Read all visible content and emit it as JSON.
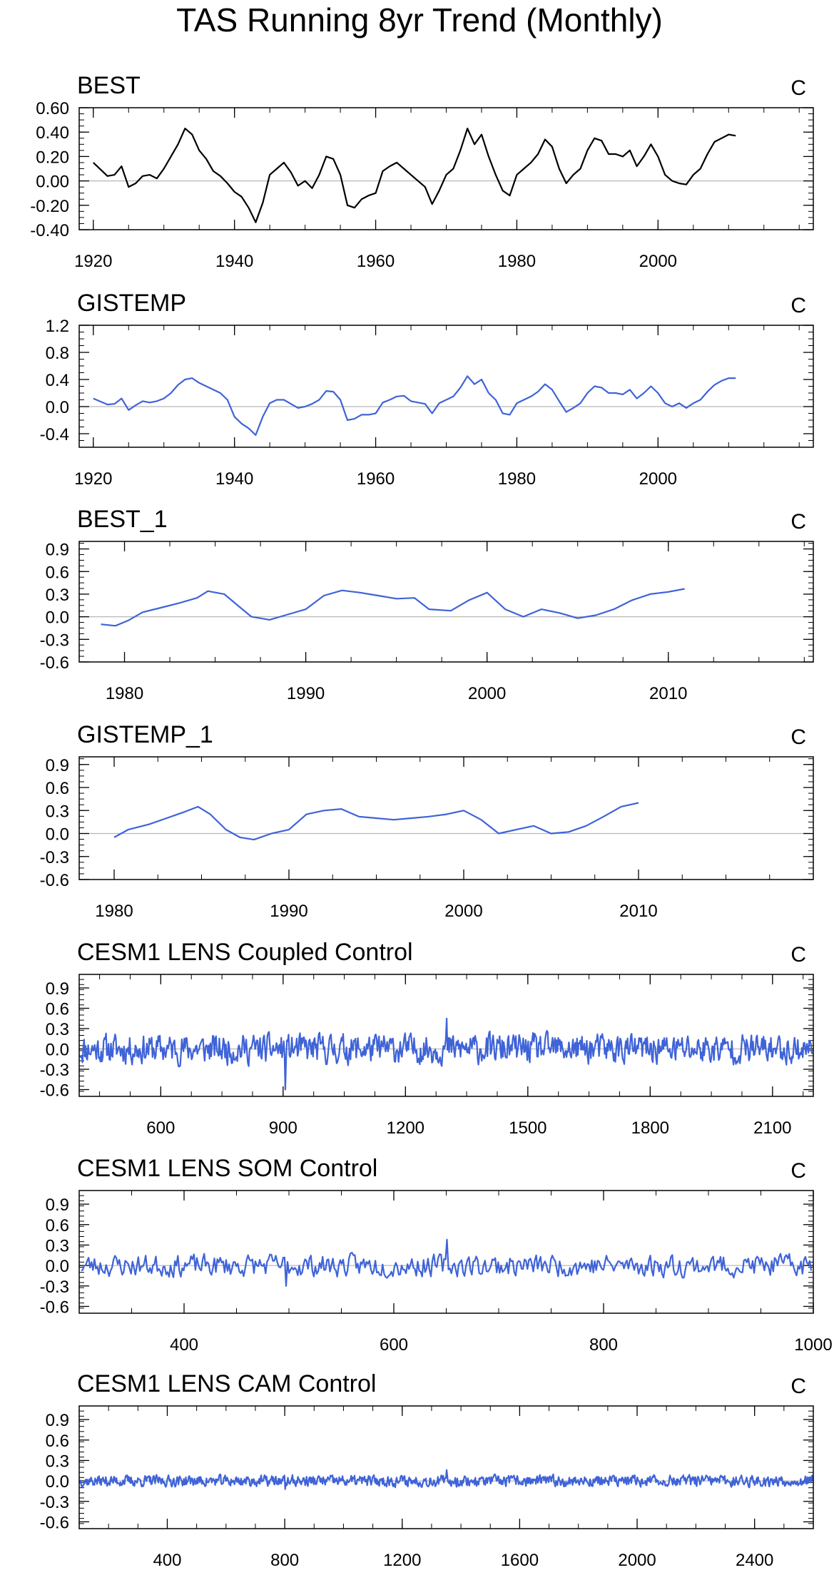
{
  "page_title": "TAS Running 8yr Trend (Monthly)",
  "colors": {
    "line_black": "#000000",
    "line_blue": "#3f63d8",
    "zero_line": "#b8b8b8",
    "axis": "#000000"
  },
  "chart_data": [
    {
      "type": "line",
      "title": "BEST",
      "units": "C",
      "line_color": "#000000",
      "xlim": [
        1918,
        2022
      ],
      "ylim": [
        -0.4,
        0.6
      ],
      "xticks": [
        1920,
        1940,
        1960,
        1980,
        2000
      ],
      "xtick_labels": [
        "1920",
        "1940",
        "1960",
        "1980",
        "2000"
      ],
      "yticks": [
        -0.4,
        -0.2,
        0.0,
        0.2,
        0.4,
        0.6
      ],
      "ytick_labels": [
        "-0.40",
        "-0.20",
        "0.00",
        "0.20",
        "0.40",
        "0.60"
      ],
      "series": [
        {
          "name": "BEST",
          "x": [
            1920,
            1922,
            1923,
            1924,
            1925,
            1926,
            1927,
            1928,
            1929,
            1930,
            1931,
            1932,
            1933,
            1934,
            1935,
            1936,
            1937,
            1938,
            1939,
            1940,
            1941,
            1942,
            1943,
            1944,
            1945,
            1946,
            1947,
            1948,
            1949,
            1950,
            1951,
            1952,
            1953,
            1954,
            1955,
            1956,
            1957,
            1958,
            1959,
            1960,
            1961,
            1962,
            1963,
            1964,
            1965,
            1966,
            1967,
            1968,
            1969,
            1970,
            1971,
            1972,
            1973,
            1974,
            1975,
            1976,
            1977,
            1978,
            1979,
            1980,
            1981,
            1982,
            1983,
            1984,
            1985,
            1986,
            1987,
            1988,
            1989,
            1990,
            1991,
            1992,
            1993,
            1994,
            1995,
            1996,
            1997,
            1998,
            1999,
            2000,
            2001,
            2002,
            2003,
            2004,
            2005,
            2006,
            2007,
            2008,
            2009,
            2010,
            2011
          ],
          "values": [
            0.15,
            0.04,
            0.05,
            0.12,
            -0.05,
            -0.02,
            0.04,
            0.05,
            0.02,
            0.1,
            0.2,
            0.3,
            0.43,
            0.38,
            0.25,
            0.18,
            0.08,
            0.04,
            -0.02,
            -0.09,
            -0.13,
            -0.22,
            -0.34,
            -0.18,
            0.05,
            0.1,
            0.15,
            0.07,
            -0.04,
            0.0,
            -0.06,
            0.05,
            0.2,
            0.18,
            0.05,
            -0.2,
            -0.22,
            -0.15,
            -0.12,
            -0.1,
            0.08,
            0.12,
            0.15,
            0.1,
            0.05,
            0.0,
            -0.05,
            -0.19,
            -0.08,
            0.05,
            0.1,
            0.25,
            0.43,
            0.3,
            0.38,
            0.2,
            0.05,
            -0.08,
            -0.12,
            0.05,
            0.1,
            0.15,
            0.22,
            0.34,
            0.28,
            0.1,
            -0.02,
            0.05,
            0.1,
            0.25,
            0.35,
            0.33,
            0.22,
            0.22,
            0.2,
            0.25,
            0.12,
            0.2,
            0.3,
            0.2,
            0.05,
            0.0,
            -0.02,
            -0.03,
            0.05,
            0.1,
            0.22,
            0.32,
            0.35,
            0.38,
            0.37
          ]
        }
      ]
    },
    {
      "type": "line",
      "title": "GISTEMP",
      "units": "C",
      "line_color": "#3f63d8",
      "xlim": [
        1918,
        2022
      ],
      "ylim": [
        -0.6,
        1.2
      ],
      "xticks": [
        1920,
        1940,
        1960,
        1980,
        2000
      ],
      "xtick_labels": [
        "1920",
        "1940",
        "1960",
        "1980",
        "2000"
      ],
      "yticks": [
        -0.4,
        0.0,
        0.4,
        0.8,
        1.2
      ],
      "ytick_labels": [
        "-0.4",
        "0.0",
        "0.4",
        "0.8",
        "1.2"
      ],
      "series": [
        {
          "name": "GISTEMP",
          "x": [
            1920,
            1922,
            1923,
            1924,
            1925,
            1926,
            1927,
            1928,
            1929,
            1930,
            1931,
            1932,
            1933,
            1934,
            1935,
            1936,
            1937,
            1938,
            1939,
            1940,
            1941,
            1942,
            1943,
            1944,
            1945,
            1946,
            1947,
            1948,
            1949,
            1950,
            1951,
            1952,
            1953,
            1954,
            1955,
            1956,
            1957,
            1958,
            1959,
            1960,
            1961,
            1962,
            1963,
            1964,
            1965,
            1966,
            1967,
            1968,
            1969,
            1970,
            1971,
            1972,
            1973,
            1974,
            1975,
            1976,
            1977,
            1978,
            1979,
            1980,
            1981,
            1982,
            1983,
            1984,
            1985,
            1986,
            1987,
            1988,
            1989,
            1990,
            1991,
            1992,
            1993,
            1994,
            1995,
            1996,
            1997,
            1998,
            1999,
            2000,
            2001,
            2002,
            2003,
            2004,
            2005,
            2006,
            2007,
            2008,
            2009,
            2010,
            2011
          ],
          "values": [
            0.12,
            0.03,
            0.04,
            0.12,
            -0.05,
            0.02,
            0.08,
            0.06,
            0.08,
            0.12,
            0.2,
            0.32,
            0.4,
            0.42,
            0.35,
            0.3,
            0.25,
            0.2,
            0.1,
            -0.15,
            -0.25,
            -0.32,
            -0.42,
            -0.15,
            0.05,
            0.1,
            0.1,
            0.04,
            -0.02,
            0.0,
            0.04,
            0.1,
            0.23,
            0.22,
            0.1,
            -0.2,
            -0.18,
            -0.12,
            -0.12,
            -0.1,
            0.06,
            0.1,
            0.15,
            0.16,
            0.08,
            0.06,
            0.04,
            -0.1,
            0.05,
            0.1,
            0.15,
            0.28,
            0.45,
            0.33,
            0.4,
            0.2,
            0.1,
            -0.1,
            -0.12,
            0.05,
            0.1,
            0.15,
            0.22,
            0.33,
            0.25,
            0.08,
            -0.08,
            -0.02,
            0.05,
            0.2,
            0.3,
            0.28,
            0.2,
            0.2,
            0.18,
            0.25,
            0.12,
            0.2,
            0.3,
            0.2,
            0.05,
            0.0,
            0.05,
            -0.02,
            0.05,
            0.1,
            0.22,
            0.32,
            0.38,
            0.42,
            0.42
          ]
        }
      ]
    },
    {
      "type": "line",
      "title": "BEST_1",
      "units": "C",
      "line_color": "#3f63d8",
      "xlim": [
        1977.5,
        2018
      ],
      "ylim": [
        -0.6,
        1.0
      ],
      "xticks": [
        1980,
        1990,
        2000,
        2010
      ],
      "xtick_labels": [
        "1980",
        "1990",
        "2000",
        "2010"
      ],
      "yticks": [
        -0.6,
        -0.3,
        0.0,
        0.3,
        0.6,
        0.9
      ],
      "ytick_labels": [
        "-0.6",
        "-0.3",
        "0.0",
        "0.3",
        "0.6",
        "0.9"
      ],
      "series": [
        {
          "name": "BEST_1",
          "x": [
            1978.7,
            1979.5,
            1980.2,
            1981,
            1982,
            1983,
            1984,
            1984.6,
            1985.5,
            1986.5,
            1987,
            1988,
            1989,
            1990,
            1991,
            1992,
            1993,
            1994,
            1995,
            1996,
            1996.8,
            1998,
            1999,
            2000,
            2001,
            2002,
            2003,
            2004,
            2005,
            2006,
            2007,
            2008,
            2009,
            2010,
            2010.9
          ],
          "values": [
            -0.1,
            -0.12,
            -0.05,
            0.06,
            0.12,
            0.18,
            0.25,
            0.34,
            0.3,
            0.1,
            0.0,
            -0.04,
            0.03,
            0.1,
            0.28,
            0.35,
            0.32,
            0.28,
            0.24,
            0.25,
            0.1,
            0.08,
            0.22,
            0.32,
            0.1,
            0.0,
            0.1,
            0.05,
            -0.02,
            0.02,
            0.1,
            0.22,
            0.3,
            0.33,
            0.37
          ]
        }
      ]
    },
    {
      "type": "line",
      "title": "GISTEMP_1",
      "units": "C",
      "line_color": "#3f63d8",
      "xlim": [
        1978,
        2020
      ],
      "ylim": [
        -0.6,
        1.0
      ],
      "xticks": [
        1980,
        1990,
        2000,
        2010
      ],
      "xtick_labels": [
        "1980",
        "1990",
        "2000",
        "2010"
      ],
      "yticks": [
        -0.6,
        -0.3,
        0.0,
        0.3,
        0.6,
        0.9
      ],
      "ytick_labels": [
        "-0.6",
        "-0.3",
        "0.0",
        "0.3",
        "0.6",
        "0.9"
      ],
      "series": [
        {
          "name": "GISTEMP_1",
          "x": [
            1980,
            1980.8,
            1982,
            1983,
            1984,
            1984.8,
            1985.5,
            1986.4,
            1987.2,
            1988,
            1989,
            1990,
            1991,
            1992,
            1993,
            1994,
            1995,
            1996,
            1997,
            1998,
            1999,
            2000,
            2001,
            2002,
            2003,
            2004,
            2005,
            2006,
            2007,
            2008,
            2009,
            2010
          ],
          "values": [
            -0.05,
            0.05,
            0.12,
            0.2,
            0.28,
            0.35,
            0.25,
            0.05,
            -0.05,
            -0.08,
            0.0,
            0.05,
            0.25,
            0.3,
            0.32,
            0.22,
            0.2,
            0.18,
            0.2,
            0.22,
            0.25,
            0.3,
            0.18,
            0.0,
            0.05,
            0.1,
            0.0,
            0.02,
            0.1,
            0.22,
            0.35,
            0.4
          ]
        }
      ]
    },
    {
      "type": "line",
      "title": "CESM1 LENS Coupled Control",
      "units": "C",
      "line_color": "#3f63d8",
      "xlim": [
        400,
        2200
      ],
      "ylim": [
        -0.7,
        1.1
      ],
      "xticks": [
        600,
        900,
        1200,
        1500,
        1800,
        2100
      ],
      "xtick_labels": [
        "600",
        "900",
        "1200",
        "1500",
        "1800",
        "2100"
      ],
      "yticks": [
        -0.6,
        -0.3,
        0.0,
        0.3,
        0.6,
        0.9
      ],
      "ytick_labels": [
        "-0.6",
        "-0.3",
        "0.0",
        "0.3",
        "0.6",
        "0.9"
      ],
      "noise": {
        "x_start": 402,
        "x_end": 2198,
        "samples": 900,
        "amplitude": 0.12,
        "min": -0.6,
        "max": 0.45,
        "seed": 11
      }
    },
    {
      "type": "line",
      "title": "CESM1 LENS SOM Control",
      "units": "C",
      "line_color": "#3f63d8",
      "xlim": [
        300,
        1000
      ],
      "ylim": [
        -0.7,
        1.1
      ],
      "xticks": [
        400,
        600,
        800,
        1000
      ],
      "xtick_labels": [
        "400",
        "600",
        "800",
        "1000"
      ],
      "yticks": [
        -0.6,
        -0.3,
        0.0,
        0.3,
        0.6,
        0.9
      ],
      "ytick_labels": [
        "-0.6",
        "-0.3",
        "0.0",
        "0.3",
        "0.6",
        "0.9"
      ],
      "noise": {
        "x_start": 302,
        "x_end": 998,
        "samples": 500,
        "amplitude": 0.09,
        "min": -0.3,
        "max": 0.38,
        "seed": 23
      }
    },
    {
      "type": "line",
      "title": "CESM1 LENS CAM Control",
      "units": "C",
      "line_color": "#3f63d8",
      "xlim": [
        100,
        2600
      ],
      "ylim": [
        -0.7,
        1.1
      ],
      "xticks": [
        400,
        800,
        1200,
        1600,
        2000,
        2400
      ],
      "xtick_labels": [
        "400",
        "800",
        "1200",
        "1600",
        "2000",
        "2400"
      ],
      "yticks": [
        -0.6,
        -0.3,
        0.0,
        0.3,
        0.6,
        0.9
      ],
      "ytick_labels": [
        "-0.6",
        "-0.3",
        "0.0",
        "0.3",
        "0.6",
        "0.9"
      ],
      "noise": {
        "x_start": 102,
        "x_end": 2598,
        "samples": 1100,
        "amplitude": 0.045,
        "min": -0.12,
        "max": 0.16,
        "seed": 37
      }
    }
  ]
}
